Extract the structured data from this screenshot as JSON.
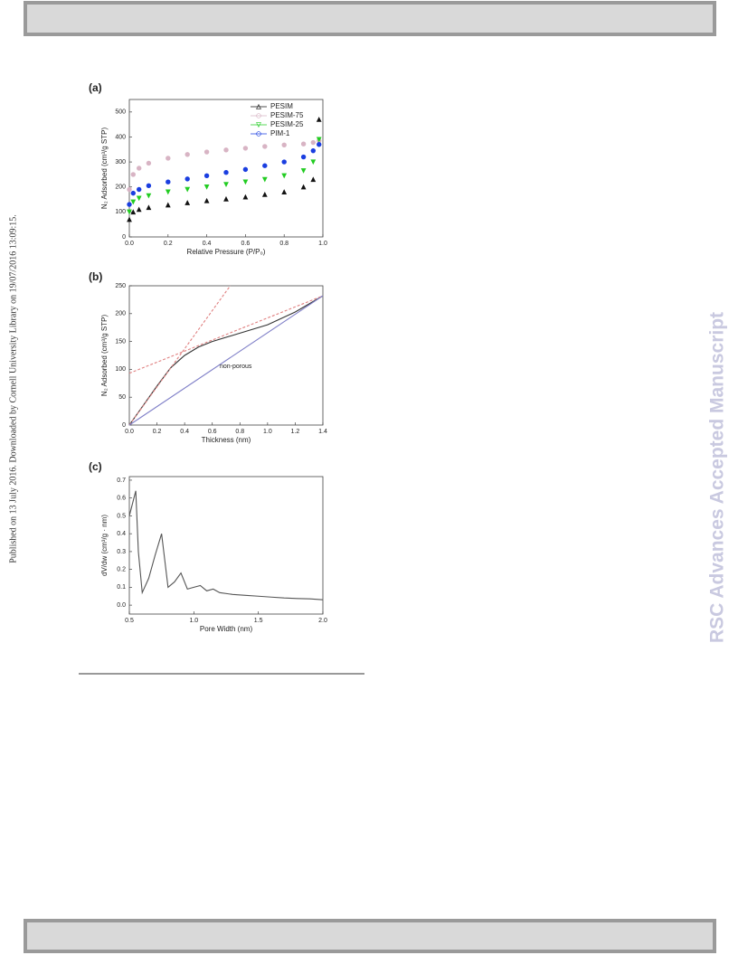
{
  "page": {
    "side_note": "Published on 13 July 2016. Downloaded by Cornell University Library on 19/07/2016 13:09:15.",
    "watermark": "RSC Advances Accepted Manuscript"
  },
  "chart_data": [
    {
      "type": "scatter",
      "panel": "(a)",
      "x_label": "Relative Pressure (P/P₀)",
      "y_label": "N₂ Adsorbed (cm³/g STP)",
      "x": [
        0,
        0.02,
        0.05,
        0.1,
        0.2,
        0.3,
        0.4,
        0.5,
        0.6,
        0.7,
        0.8,
        0.9,
        0.95,
        0.98
      ],
      "series": [
        {
          "name": "PESIM",
          "color": "#111111",
          "marker": "triangle",
          "values": [
            70,
            100,
            110,
            118,
            128,
            137,
            145,
            152,
            160,
            170,
            180,
            200,
            230,
            470
          ]
        },
        {
          "name": "PESIM-75",
          "color": "#d8b4c4",
          "marker": "circle",
          "values": [
            190,
            250,
            275,
            295,
            315,
            330,
            340,
            348,
            355,
            362,
            368,
            372,
            378,
            385
          ]
        },
        {
          "name": "PESIM-25",
          "color": "#22cc22",
          "marker": "triangle-down",
          "values": [
            100,
            140,
            155,
            165,
            180,
            190,
            200,
            210,
            220,
            230,
            245,
            265,
            300,
            390
          ]
        },
        {
          "name": "PIM-1",
          "color": "#1a3ee0",
          "marker": "circle",
          "values": [
            130,
            175,
            190,
            205,
            220,
            232,
            245,
            258,
            270,
            285,
            300,
            320,
            345,
            370
          ]
        }
      ],
      "xlim": [
        0,
        1
      ],
      "xticks": [
        {
          "value": 0,
          "label": "0.0"
        },
        0.2,
        0.4,
        0.6,
        0.8,
        {
          "value": 1,
          "label": "1.0"
        }
      ],
      "ylim": [
        0,
        550
      ],
      "yticks": [
        0,
        100,
        200,
        300,
        400,
        500
      ],
      "legend": "upper right"
    },
    {
      "type": "line",
      "panel": "(b)",
      "x_label": "Thickness (nm)",
      "y_label": "N₂ Adsorbed (cm³/g STP)",
      "series": [
        {
          "color": "#333333",
          "x": [
            0,
            0.1,
            0.2,
            0.3,
            0.4,
            0.5,
            0.6,
            0.8,
            1.0,
            1.2,
            1.4
          ],
          "values": [
            0,
            35,
            70,
            103,
            125,
            140,
            150,
            165,
            180,
            203,
            232
          ]
        },
        {
          "color": "#e08080",
          "dash": true,
          "x": [
            0,
            0.73
          ],
          "values": [
            0,
            250
          ]
        },
        {
          "color": "#e08080",
          "dash": true,
          "x": [
            0,
            1.4
          ],
          "values": [
            93,
            232
          ]
        },
        {
          "name": "non-porous",
          "color": "#8080c8",
          "x": [
            0,
            1.4
          ],
          "values": [
            0,
            232
          ]
        }
      ],
      "xlim": [
        0,
        1.4
      ],
      "xticks": [
        {
          "value": 0,
          "label": "0.0"
        },
        0.2,
        0.4,
        0.6,
        0.8,
        {
          "value": 1,
          "label": "1.0"
        },
        1.2,
        1.4
      ],
      "ylim": [
        0,
        250
      ],
      "yticks": [
        0,
        50,
        100,
        150,
        200,
        250
      ]
    },
    {
      "type": "line",
      "panel": "(c)",
      "x_label": "Pore Width (nm)",
      "y_label": "dV/dw (cm³/g · nm)",
      "series": [
        {
          "color": "#555555",
          "x": [
            0.5,
            0.55,
            0.57,
            0.6,
            0.65,
            0.7,
            0.75,
            0.8,
            0.85,
            0.9,
            0.95,
            1.0,
            1.05,
            1.1,
            1.15,
            1.2,
            1.3,
            1.4,
            1.5,
            1.6,
            1.7,
            1.8,
            1.9,
            2.0
          ],
          "values": [
            0.5,
            0.64,
            0.3,
            0.07,
            0.15,
            0.28,
            0.4,
            0.1,
            0.13,
            0.18,
            0.09,
            0.1,
            0.11,
            0.08,
            0.09,
            0.07,
            0.06,
            0.055,
            0.05,
            0.045,
            0.04,
            0.037,
            0.035,
            0.03
          ]
        }
      ],
      "xlim": [
        0.5,
        2.0
      ],
      "xticks": [
        0.5,
        {
          "value": 1,
          "label": "1.0"
        },
        1.5,
        {
          "value": 2,
          "label": "2.0"
        }
      ],
      "ylim": [
        -0.05,
        0.72
      ],
      "yticks": [
        {
          "value": 0,
          "label": "0.0"
        },
        0.1,
        0.2,
        0.3,
        0.4,
        0.5,
        0.6,
        0.7
      ]
    }
  ]
}
